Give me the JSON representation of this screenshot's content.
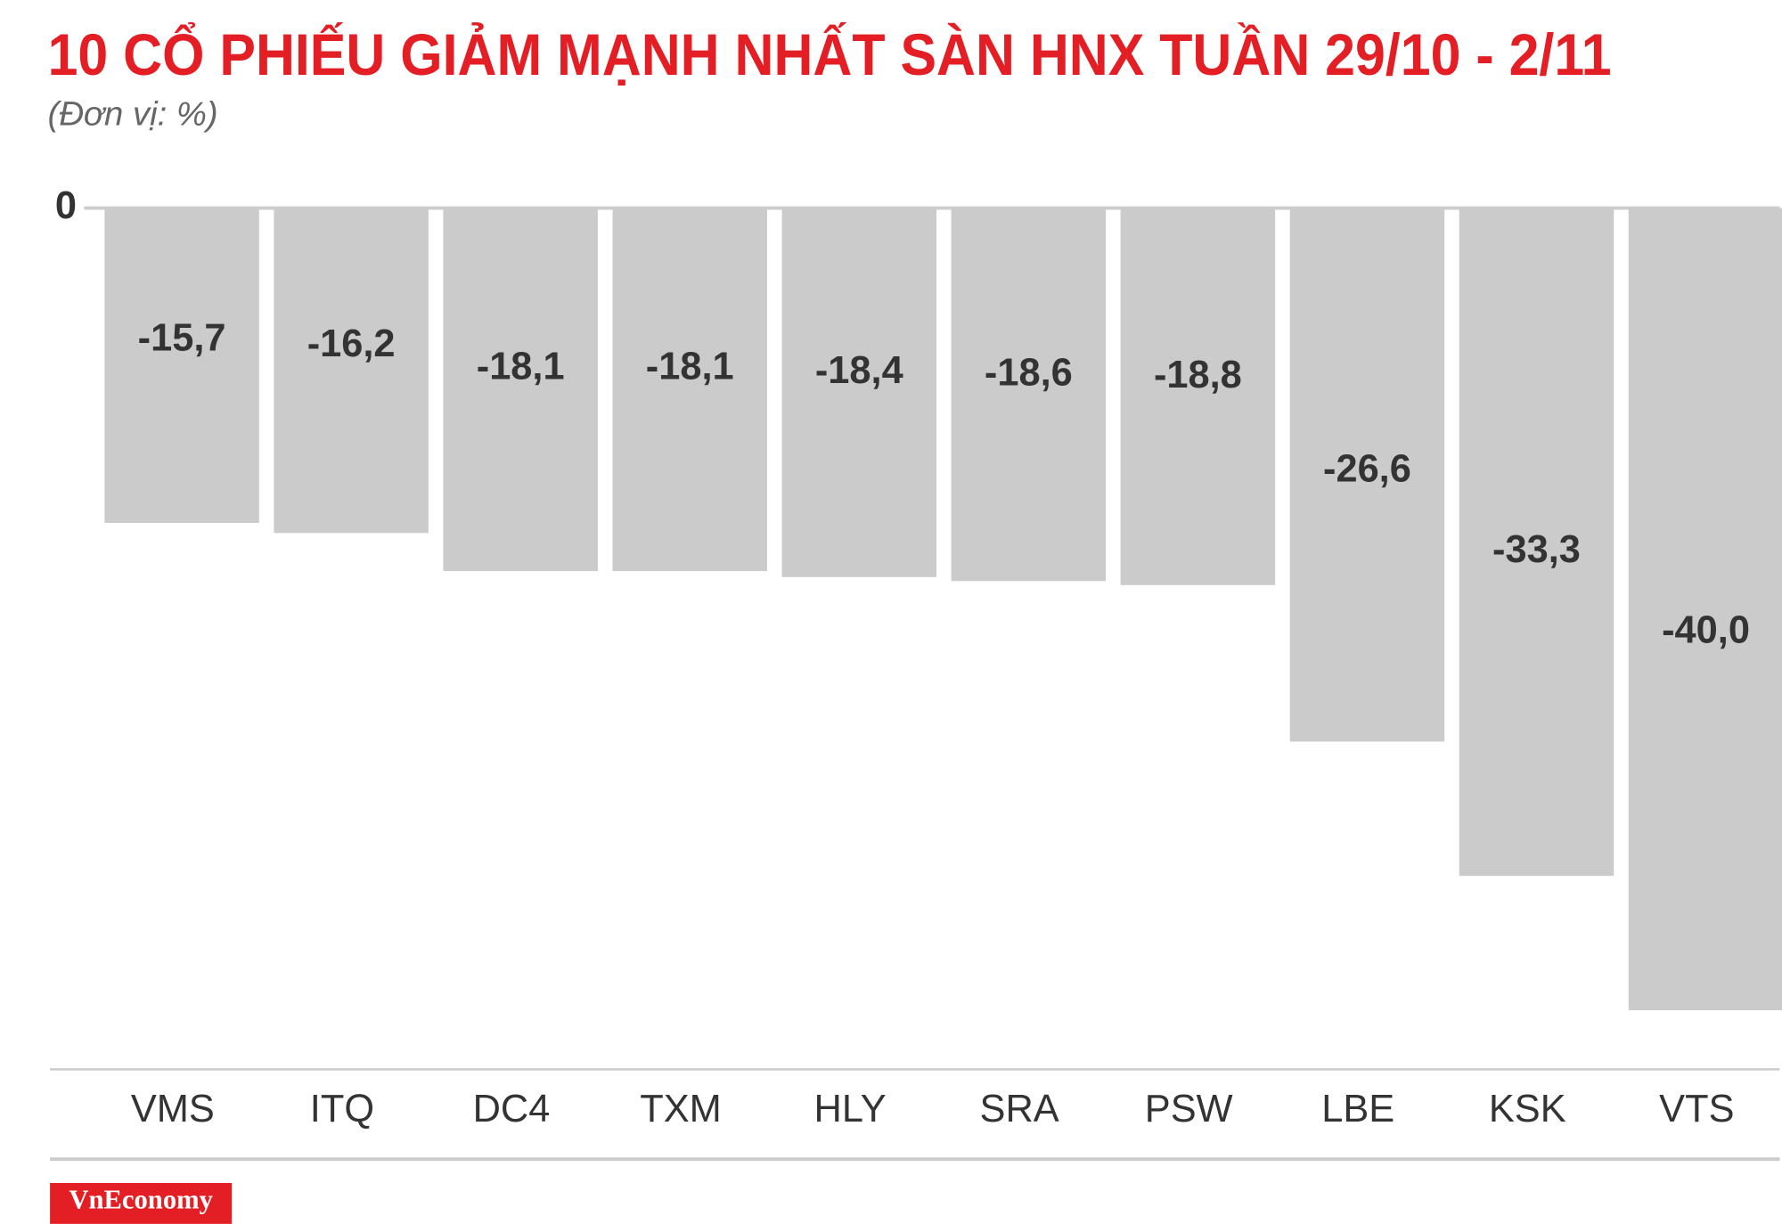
{
  "chart_data": {
    "type": "bar",
    "title": "10 CỔ PHIẾU GIẢM MẠNH NHẤT SÀN HNX TUẦN 29/10 - 2/11",
    "subtitle": "(Đơn vị: %)",
    "categories": [
      "VMS",
      "ITQ",
      "DC4",
      "TXM",
      "HLY",
      "SRA",
      "PSW",
      "LBE",
      "KSK",
      "VTS"
    ],
    "values": [
      -15.7,
      -16.2,
      -18.1,
      -18.1,
      -18.4,
      -18.6,
      -18.8,
      -26.6,
      -33.3,
      -40.0
    ],
    "value_labels": [
      "-15,7",
      "-16,2",
      "-18,1",
      "-18,1",
      "-18,4",
      "-18,6",
      "-18,8",
      "-26,6",
      "-33,3",
      "-40,0"
    ],
    "color": "#cccbcc",
    "ylim": [
      -40,
      0
    ],
    "yticks": [
      0
    ],
    "logo": "VnEconomy"
  }
}
